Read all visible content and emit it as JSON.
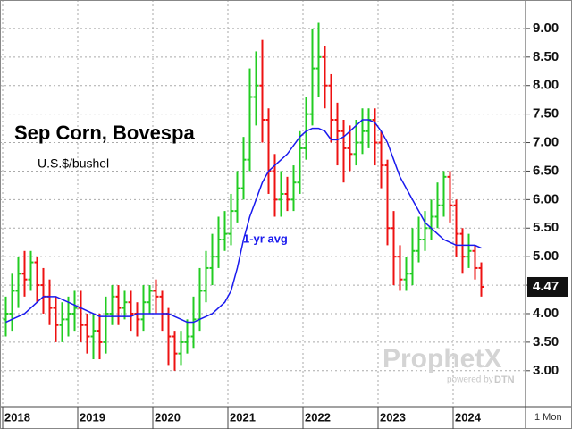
{
  "chart_data": {
    "type": "ohlc",
    "title": "Sep Corn, Bovespa",
    "subtitle": "U.S.$/bushel",
    "watermark": "ProphetX",
    "watermark_sub": "powered by",
    "watermark_brand": "DTN",
    "interval": "1 Mon",
    "up_color": "#22cc22",
    "down_color": "#ee1111",
    "grid": true,
    "ylim": [
      2.37,
      9.5
    ],
    "yticks": [
      {
        "value": 3,
        "label": "3.00"
      },
      {
        "value": 3.5,
        "label": "3.50"
      },
      {
        "value": 4,
        "label": "4.00"
      },
      {
        "value": 4.5,
        "label": "4.50"
      },
      {
        "value": 5,
        "label": "5.00"
      },
      {
        "value": 5.5,
        "label": "5.50"
      },
      {
        "value": 6,
        "label": "6.00"
      },
      {
        "value": 6.5,
        "label": "6.50"
      },
      {
        "value": 7,
        "label": "7.00"
      },
      {
        "value": 7.5,
        "label": "7.50"
      },
      {
        "value": 8,
        "label": "8.00"
      },
      {
        "value": 8.5,
        "label": "8.50"
      },
      {
        "value": 9,
        "label": "9.00"
      }
    ],
    "categories": [
      "2018",
      null,
      null,
      null,
      null,
      null,
      null,
      null,
      null,
      null,
      null,
      null,
      "2019",
      null,
      null,
      null,
      null,
      null,
      null,
      null,
      null,
      null,
      null,
      null,
      "2020",
      null,
      null,
      null,
      null,
      null,
      null,
      null,
      null,
      null,
      null,
      null,
      "2021",
      null,
      null,
      null,
      null,
      null,
      null,
      null,
      null,
      null,
      null,
      null,
      "2022",
      null,
      null,
      null,
      null,
      null,
      null,
      null,
      null,
      null,
      null,
      null,
      "2023",
      null,
      null,
      null,
      null,
      null,
      null,
      null,
      null,
      null,
      null,
      null,
      "2024",
      null,
      null,
      null,
      null
    ],
    "open": [
      3.9,
      4.0,
      4.4,
      4.7,
      4.6,
      4.9,
      4.5,
      4.3,
      4.1,
      3.8,
      3.9,
      4.0,
      4.1,
      3.8,
      3.6,
      3.7,
      3.5,
      4.0,
      4.3,
      4.1,
      4.2,
      4.0,
      3.9,
      4.2,
      4.4,
      4.3,
      4.0,
      3.6,
      3.3,
      3.5,
      3.6,
      3.9,
      4.4,
      4.8,
      5.0,
      5.3,
      5.4,
      5.8,
      6.2,
      6.7,
      7.8,
      8.0,
      7.4,
      6.5,
      6.0,
      6.1,
      6.0,
      6.3,
      6.9,
      7.5,
      8.3,
      8.5,
      8.0,
      7.4,
      7.2,
      6.9,
      6.8,
      7.0,
      7.2,
      7.4,
      7.0,
      6.6,
      5.5,
      5.0,
      4.6,
      4.7,
      5.1,
      5.3,
      5.5,
      5.7,
      5.9,
      6.4,
      5.9,
      5.4,
      5.0,
      5.1,
      4.8
    ],
    "high": [
      4.3,
      4.7,
      5.0,
      5.1,
      5.1,
      5.0,
      4.8,
      4.6,
      4.3,
      4.2,
      4.3,
      4.4,
      4.4,
      4.0,
      4.0,
      4.0,
      4.3,
      4.5,
      4.5,
      4.4,
      4.4,
      4.2,
      4.5,
      4.5,
      4.6,
      4.4,
      4.1,
      3.7,
      3.7,
      3.9,
      4.3,
      4.8,
      5.1,
      5.4,
      5.7,
      5.8,
      6.1,
      6.5,
      7.1,
      8.3,
      8.6,
      8.8,
      7.6,
      6.8,
      6.5,
      6.4,
      6.6,
      7.2,
      7.8,
      9.0,
      9.1,
      8.7,
      8.2,
      7.7,
      7.4,
      7.3,
      7.4,
      7.6,
      7.6,
      7.6,
      7.2,
      6.7,
      5.8,
      5.2,
      5.0,
      5.5,
      5.7,
      5.8,
      6.0,
      6.3,
      6.5,
      6.5,
      6.0,
      5.5,
      5.4,
      5.2,
      4.9
    ],
    "low": [
      3.6,
      3.7,
      4.1,
      4.3,
      4.4,
      4.2,
      4.0,
      3.8,
      3.5,
      3.5,
      3.6,
      3.7,
      3.5,
      3.3,
      3.2,
      3.2,
      3.3,
      3.8,
      3.8,
      3.9,
      3.7,
      3.6,
      3.7,
      4.0,
      4.0,
      3.7,
      3.1,
      3.0,
      3.1,
      3.3,
      3.4,
      3.7,
      4.2,
      4.5,
      4.8,
      5.1,
      5.2,
      5.6,
      6.0,
      6.5,
      7.3,
      7.0,
      6.1,
      5.7,
      5.7,
      5.8,
      5.8,
      6.1,
      6.7,
      7.3,
      7.8,
      7.6,
      7.0,
      6.6,
      6.3,
      6.5,
      6.6,
      6.8,
      6.9,
      6.6,
      6.2,
      5.2,
      4.5,
      4.4,
      4.4,
      4.5,
      4.9,
      5.1,
      5.3,
      5.5,
      5.7,
      5.6,
      5.0,
      4.7,
      4.8,
      4.6,
      4.3
    ],
    "close": [
      4.0,
      4.4,
      4.7,
      4.6,
      4.9,
      4.5,
      4.3,
      4.1,
      3.8,
      3.9,
      4.0,
      4.1,
      3.8,
      3.6,
      3.7,
      3.5,
      4.0,
      4.3,
      4.1,
      4.2,
      4.0,
      3.9,
      4.2,
      4.4,
      4.3,
      4.0,
      3.6,
      3.3,
      3.5,
      3.6,
      3.9,
      4.4,
      4.8,
      5.0,
      5.3,
      5.4,
      5.8,
      6.2,
      6.7,
      7.8,
      8.0,
      7.4,
      6.5,
      6.0,
      6.1,
      6.0,
      6.3,
      6.9,
      7.5,
      8.3,
      8.5,
      8.0,
      7.4,
      7.2,
      6.9,
      6.8,
      7.0,
      7.2,
      7.4,
      7.0,
      6.6,
      5.5,
      5.0,
      4.6,
      4.7,
      5.1,
      5.3,
      5.5,
      5.7,
      5.9,
      6.4,
      5.9,
      5.4,
      5.0,
      5.1,
      4.8,
      4.47
    ],
    "average": {
      "name": "1-yr avg",
      "color": "#1a1aee",
      "values": [
        3.85,
        3.9,
        3.95,
        4.0,
        4.1,
        4.2,
        4.3,
        4.3,
        4.3,
        4.25,
        4.2,
        4.15,
        4.1,
        4.05,
        4.0,
        3.95,
        3.95,
        3.95,
        3.95,
        3.95,
        3.95,
        4.0,
        4.0,
        4.0,
        4.0,
        4.0,
        4.0,
        3.95,
        3.9,
        3.85,
        3.85,
        3.9,
        3.95,
        4.0,
        4.1,
        4.2,
        4.4,
        4.8,
        5.3,
        5.7,
        6.0,
        6.3,
        6.5,
        6.6,
        6.7,
        6.8,
        6.95,
        7.1,
        7.2,
        7.25,
        7.25,
        7.2,
        7.05,
        7.05,
        7.1,
        7.2,
        7.3,
        7.4,
        7.4,
        7.35,
        7.2,
        7.0,
        6.7,
        6.4,
        6.2,
        6.0,
        5.8,
        5.6,
        5.5,
        5.4,
        5.3,
        5.25,
        5.2,
        5.2,
        5.2,
        5.2,
        5.15
      ]
    }
  }
}
